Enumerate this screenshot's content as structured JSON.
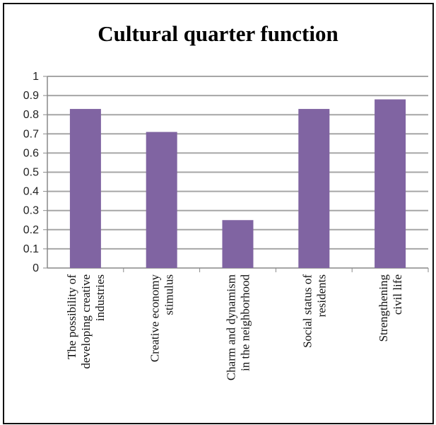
{
  "chart_data": {
    "type": "bar",
    "title": "Cultural quarter function",
    "categories": [
      [
        "The possibility of",
        "developing creative",
        "industries"
      ],
      [
        "Creative economy",
        "stimulus"
      ],
      [
        "Charm and dynamism",
        "in the neighborhood"
      ],
      [
        "Social status of",
        "residents"
      ],
      [
        "Strengthening",
        "civil life"
      ]
    ],
    "values": [
      0.83,
      0.71,
      0.25,
      0.83,
      0.88
    ],
    "ylim": [
      0,
      1
    ],
    "yticks": [
      "0",
      "0.1",
      "0.2",
      "0.3",
      "0.4",
      "0.5",
      "0.6",
      "0.7",
      "0.8",
      "0.9",
      "1"
    ],
    "grid": true,
    "colors": {
      "bar": "#8064A2",
      "grid": "#A6A6A6",
      "axis": "#888888"
    }
  }
}
